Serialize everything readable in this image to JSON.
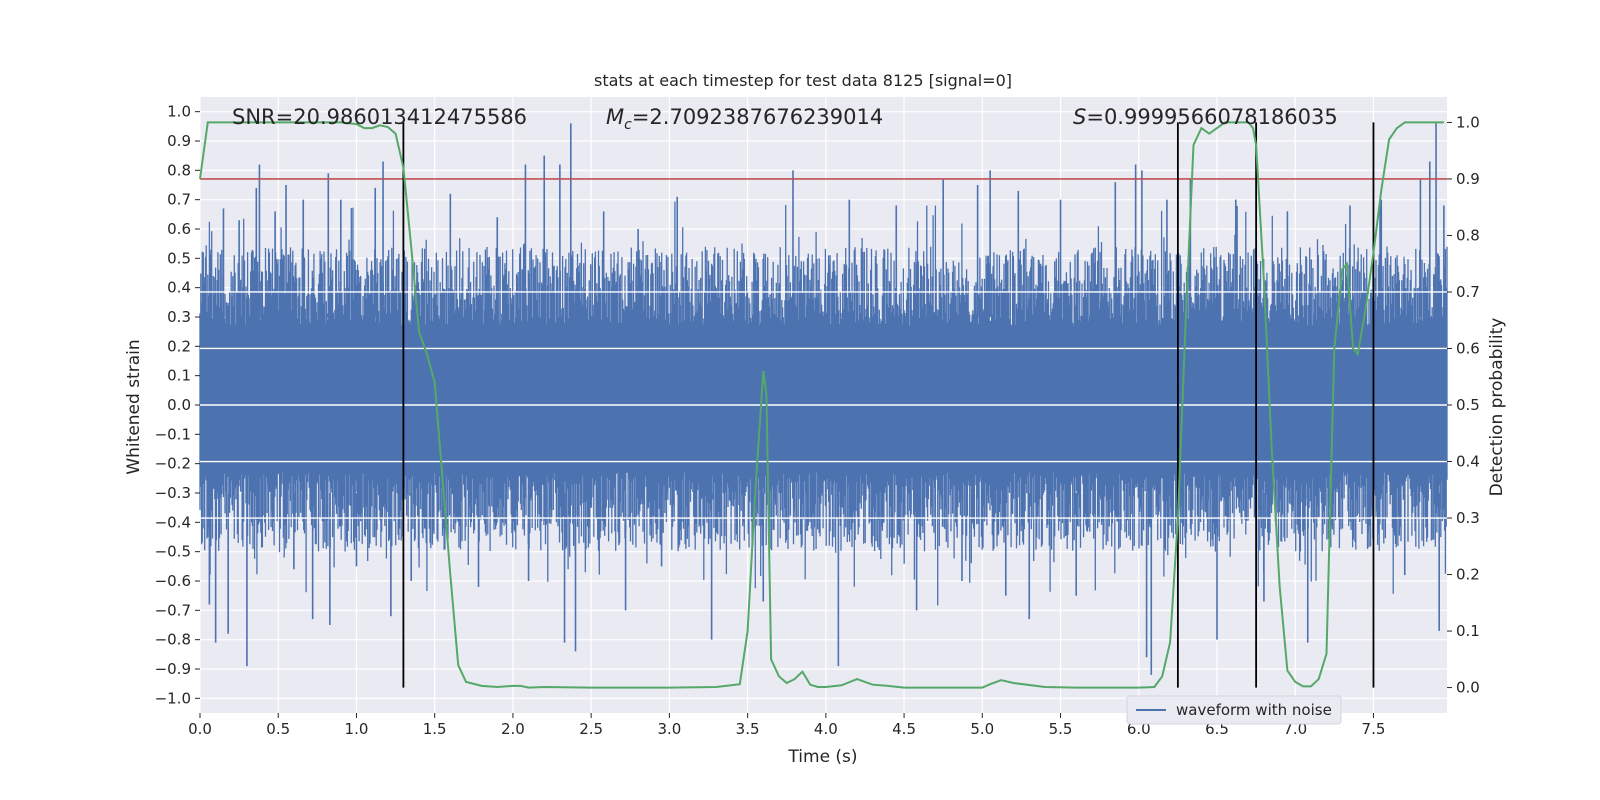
{
  "chart_data": {
    "type": "line",
    "title": "stats at each timestep for test data 8125 [signal=0]",
    "xlabel": "Time (s)",
    "ylabel_left": "Whitened strain",
    "ylabel_right": "Detection probability",
    "xlim": [
      0.0,
      7.97
    ],
    "ylim_left": [
      -1.05,
      1.05
    ],
    "ylim_right": [
      -0.045,
      1.045
    ],
    "x_ticks": [
      "0.0",
      "0.5",
      "1.0",
      "1.5",
      "2.0",
      "2.5",
      "3.0",
      "3.5",
      "4.0",
      "4.5",
      "5.0",
      "5.5",
      "6.0",
      "6.5",
      "7.0",
      "7.5"
    ],
    "y_left_ticks": [
      "1.0",
      "0.9",
      "0.8",
      "0.7",
      "0.6",
      "0.5",
      "0.4",
      "0.3",
      "0.2",
      "0.1",
      "0.0",
      "−0.1",
      "−0.2",
      "−0.3",
      "−0.4",
      "−0.5",
      "−0.6",
      "−0.7",
      "−0.8",
      "−0.9",
      "−1.0"
    ],
    "y_right_ticks": [
      "1.0",
      "0.9",
      "0.8",
      "0.7",
      "0.6",
      "0.5",
      "0.4",
      "0.3",
      "0.2",
      "0.1",
      "0.0"
    ],
    "grid": true,
    "background": "#eaeaf2",
    "annotations": {
      "snr": "SNR=20.986013412475586",
      "mc_symbol": "M",
      "mc_sub": "c",
      "mc_value": "=2.7092387676239014",
      "s_symbol": "S",
      "s_value": "=0.9999566078186035"
    },
    "legend": {
      "position": "bottom-right",
      "entries": [
        "waveform with noise"
      ]
    },
    "threshold": {
      "value": 0.9,
      "axis": "right",
      "color": "#c44e52"
    },
    "vertical_lines": [
      1.3,
      6.25,
      6.75,
      7.5
    ],
    "vline_probability_range": [
      0.0,
      1.0
    ],
    "series": [
      {
        "name": "waveform with noise",
        "axis": "left",
        "color": "#4c72b0",
        "kind": "noise",
        "description_stats": {
          "typical_band": [
            -0.35,
            0.42
          ],
          "max": 0.96,
          "min": -0.93
        },
        "spikes": [
          {
            "x": 0.02,
            "y": 0.52
          },
          {
            "x": 0.06,
            "y": -0.68
          },
          {
            "x": 0.1,
            "y": -0.81
          },
          {
            "x": 0.15,
            "y": 0.67
          },
          {
            "x": 0.18,
            "y": -0.78
          },
          {
            "x": 0.25,
            "y": 0.63
          },
          {
            "x": 0.3,
            "y": -0.89
          },
          {
            "x": 0.36,
            "y": 0.74
          },
          {
            "x": 0.38,
            "y": 0.82
          },
          {
            "x": 0.48,
            "y": 0.66
          },
          {
            "x": 0.55,
            "y": 0.75
          },
          {
            "x": 0.6,
            "y": -0.56
          },
          {
            "x": 0.66,
            "y": 0.7
          },
          {
            "x": 0.72,
            "y": -0.73
          },
          {
            "x": 0.82,
            "y": 0.79
          },
          {
            "x": 0.83,
            "y": -0.75
          },
          {
            "x": 0.9,
            "y": 0.7
          },
          {
            "x": 1.0,
            "y": -0.55
          },
          {
            "x": 1.12,
            "y": 0.74
          },
          {
            "x": 1.17,
            "y": 0.83
          },
          {
            "x": 1.22,
            "y": -0.72
          },
          {
            "x": 1.35,
            "y": -0.6
          },
          {
            "x": 1.6,
            "y": 0.72
          },
          {
            "x": 1.78,
            "y": -0.62
          },
          {
            "x": 1.9,
            "y": 0.64
          },
          {
            "x": 2.08,
            "y": 0.82
          },
          {
            "x": 2.1,
            "y": -0.6
          },
          {
            "x": 2.2,
            "y": 0.85
          },
          {
            "x": 2.3,
            "y": 0.82
          },
          {
            "x": 2.33,
            "y": -0.81
          },
          {
            "x": 2.37,
            "y": 0.96
          },
          {
            "x": 2.4,
            "y": -0.84
          },
          {
            "x": 2.58,
            "y": 0.66
          },
          {
            "x": 2.72,
            "y": -0.7
          },
          {
            "x": 2.8,
            "y": 0.6
          },
          {
            "x": 2.95,
            "y": -0.55
          },
          {
            "x": 3.05,
            "y": 0.71
          },
          {
            "x": 3.27,
            "y": -0.8
          },
          {
            "x": 3.6,
            "y": -0.67
          },
          {
            "x": 3.79,
            "y": 0.8
          },
          {
            "x": 4.08,
            "y": -0.89
          },
          {
            "x": 4.15,
            "y": 0.7
          },
          {
            "x": 4.45,
            "y": 0.68
          },
          {
            "x": 4.58,
            "y": -0.7
          },
          {
            "x": 4.75,
            "y": 0.77
          },
          {
            "x": 4.87,
            "y": -0.6
          },
          {
            "x": 4.97,
            "y": 0.75
          },
          {
            "x": 5.05,
            "y": 0.8
          },
          {
            "x": 5.15,
            "y": -0.65
          },
          {
            "x": 5.23,
            "y": 0.73
          },
          {
            "x": 5.3,
            "y": -0.73
          },
          {
            "x": 5.5,
            "y": 0.7
          },
          {
            "x": 5.6,
            "y": -0.65
          },
          {
            "x": 5.85,
            "y": 0.76
          },
          {
            "x": 5.98,
            "y": 0.82
          },
          {
            "x": 6.02,
            "y": 0.8
          },
          {
            "x": 6.05,
            "y": -0.86
          },
          {
            "x": 6.08,
            "y": -0.92
          },
          {
            "x": 6.18,
            "y": 0.7
          },
          {
            "x": 6.33,
            "y": 0.77
          },
          {
            "x": 6.5,
            "y": -0.8
          },
          {
            "x": 6.62,
            "y": 0.7
          },
          {
            "x": 6.8,
            "y": -0.67
          },
          {
            "x": 6.95,
            "y": 0.66
          },
          {
            "x": 7.08,
            "y": -0.81
          },
          {
            "x": 7.35,
            "y": 0.68
          },
          {
            "x": 7.55,
            "y": 0.7
          },
          {
            "x": 7.7,
            "y": -0.58
          },
          {
            "x": 7.8,
            "y": 0.77
          },
          {
            "x": 7.86,
            "y": 0.83
          },
          {
            "x": 7.9,
            "y": 0.96
          },
          {
            "x": 7.92,
            "y": -0.77
          },
          {
            "x": 7.95,
            "y": 0.68
          }
        ]
      },
      {
        "name": "",
        "axis": "right",
        "color": "#55a868",
        "x": [
          0.0,
          0.05,
          0.1,
          0.3,
          0.6,
          0.9,
          1.0,
          1.05,
          1.1,
          1.15,
          1.2,
          1.25,
          1.3,
          1.35,
          1.4,
          1.45,
          1.5,
          1.55,
          1.6,
          1.65,
          1.7,
          1.8,
          1.9,
          2.0,
          2.05,
          2.1,
          2.2,
          2.5,
          3.0,
          3.3,
          3.45,
          3.5,
          3.55,
          3.6,
          3.62,
          3.65,
          3.7,
          3.75,
          3.8,
          3.85,
          3.9,
          3.95,
          4.0,
          4.1,
          4.2,
          4.25,
          4.3,
          4.4,
          4.5,
          4.6,
          5.0,
          5.05,
          5.12,
          5.2,
          5.4,
          5.6,
          6.0,
          6.1,
          6.15,
          6.2,
          6.25,
          6.3,
          6.35,
          6.4,
          6.45,
          6.5,
          6.55,
          6.6,
          6.65,
          6.7,
          6.73,
          6.75,
          6.8,
          6.85,
          6.9,
          6.95,
          7.0,
          7.05,
          7.1,
          7.15,
          7.2,
          7.25,
          7.3,
          7.33,
          7.37,
          7.4,
          7.45,
          7.5,
          7.55,
          7.6,
          7.65,
          7.7,
          7.8,
          7.95
        ],
        "values": [
          0.9,
          1.0,
          1.0,
          1.0,
          1.0,
          1.0,
          0.997,
          0.99,
          0.99,
          0.995,
          0.992,
          0.98,
          0.92,
          0.78,
          0.63,
          0.59,
          0.54,
          0.37,
          0.2,
          0.04,
          0.01,
          0.003,
          0.001,
          0.003,
          0.003,
          0.0,
          0.001,
          0.0,
          0.0,
          0.001,
          0.006,
          0.1,
          0.35,
          0.56,
          0.52,
          0.05,
          0.02,
          0.008,
          0.015,
          0.028,
          0.005,
          0.001,
          0.001,
          0.004,
          0.015,
          0.01,
          0.005,
          0.003,
          0.0,
          0.0,
          0.0,
          0.006,
          0.013,
          0.008,
          0.001,
          0.0,
          0.0,
          0.001,
          0.02,
          0.08,
          0.3,
          0.65,
          0.96,
          0.99,
          0.98,
          0.99,
          1.0,
          1.0,
          1.0,
          1.0,
          0.99,
          0.96,
          0.72,
          0.42,
          0.18,
          0.03,
          0.01,
          0.002,
          0.002,
          0.015,
          0.06,
          0.6,
          0.74,
          0.75,
          0.6,
          0.59,
          0.67,
          0.77,
          0.88,
          0.97,
          0.99,
          1.0,
          1.0,
          1.0
        ]
      }
    ]
  }
}
